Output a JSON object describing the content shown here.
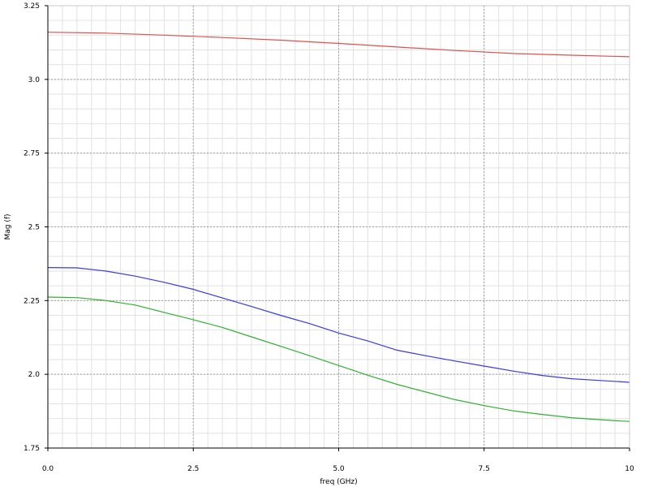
{
  "chart_data": {
    "type": "line",
    "xlabel": "freq (GHz)",
    "ylabel": "Mag (f)",
    "xlim": [
      0,
      10
    ],
    "ylim": [
      1.75,
      3.25
    ],
    "xticks": [
      0.0,
      2.5,
      5.0,
      7.5,
      10
    ],
    "xtick_labels": [
      "0.0",
      "2.5",
      "5.0",
      "7.5",
      "10"
    ],
    "yticks": [
      1.75,
      2.0,
      2.25,
      2.5,
      2.75,
      3.0,
      3.25
    ],
    "ytick_labels": [
      "1.75",
      "2.0",
      "2.25",
      "2.5",
      "2.75",
      "3.0",
      "3.25"
    ],
    "grid": true,
    "legend": "none",
    "series": [
      {
        "color": "#e05050",
        "x": [
          0,
          1,
          2,
          3,
          4,
          5,
          6,
          7,
          8,
          9,
          10
        ],
        "values": [
          3.16,
          3.157,
          3.15,
          3.142,
          3.133,
          3.122,
          3.11,
          3.098,
          3.088,
          3.082,
          3.077
        ]
      },
      {
        "color": "#3a3adf",
        "x": [
          0,
          0.5,
          1,
          1.5,
          2,
          2.5,
          3,
          3.5,
          4,
          4.5,
          5,
          5.5,
          6,
          6.5,
          7,
          7.5,
          8,
          8.5,
          9,
          9.5,
          10
        ],
        "values": [
          2.362,
          2.361,
          2.35,
          2.333,
          2.312,
          2.288,
          2.259,
          2.23,
          2.2,
          2.172,
          2.14,
          2.113,
          2.082,
          2.063,
          2.045,
          2.028,
          2.011,
          1.996,
          1.985,
          1.979,
          1.973
        ]
      },
      {
        "color": "#30b030",
        "x": [
          0,
          0.5,
          1,
          1.5,
          2,
          2.5,
          3,
          3.5,
          4,
          4.5,
          5,
          5.5,
          6,
          6.5,
          7,
          7.5,
          8,
          8.5,
          9,
          9.5,
          10
        ],
        "values": [
          2.262,
          2.26,
          2.25,
          2.235,
          2.21,
          2.185,
          2.159,
          2.127,
          2.095,
          2.063,
          2.03,
          1.997,
          1.966,
          1.94,
          1.914,
          1.894,
          1.876,
          1.864,
          1.853,
          1.846,
          1.84
        ]
      }
    ]
  }
}
